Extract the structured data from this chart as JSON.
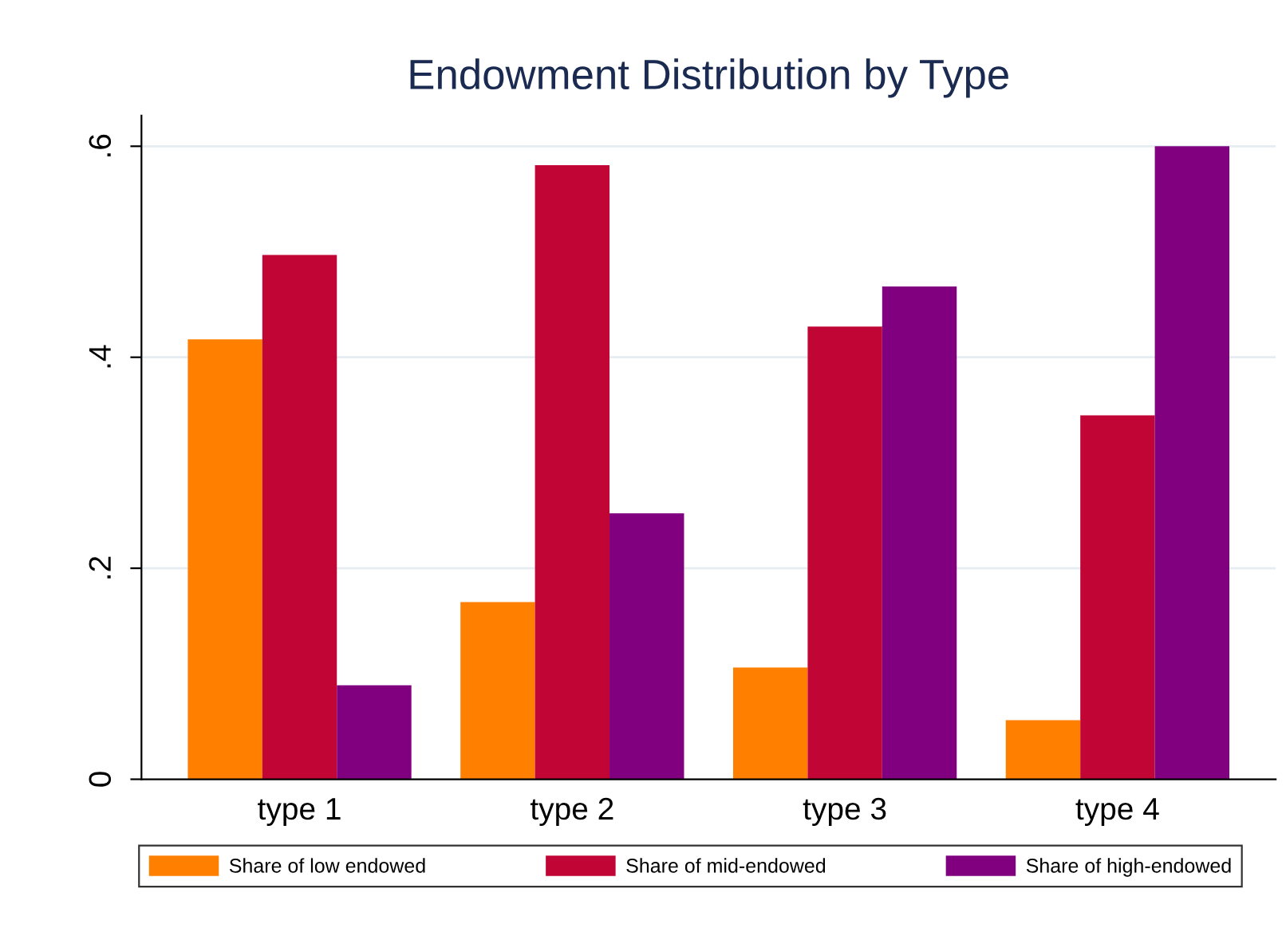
{
  "chart_data": {
    "type": "bar",
    "title": "Endowment Distribution by Type",
    "categories": [
      "type 1",
      "type 2",
      "type 3",
      "type 4"
    ],
    "series": [
      {
        "name": "Share of low endowed",
        "color": "#ff7f00",
        "values": [
          0.417,
          0.168,
          0.106,
          0.056
        ]
      },
      {
        "name": "Share of mid-endowed",
        "color": "#c10534",
        "values": [
          0.497,
          0.582,
          0.429,
          0.345
        ]
      },
      {
        "name": "Share of high-endowed",
        "color": "#800080",
        "values": [
          0.089,
          0.252,
          0.467,
          0.6
        ]
      }
    ],
    "ylim": [
      0,
      0.629
    ],
    "yticks": [
      {
        "value": 0,
        "label": "0"
      },
      {
        "value": 0.2,
        "label": ".2"
      },
      {
        "value": 0.4,
        "label": ".4"
      },
      {
        "value": 0.6,
        "label": ".6"
      }
    ],
    "grid": "y",
    "legend": "bottom"
  }
}
